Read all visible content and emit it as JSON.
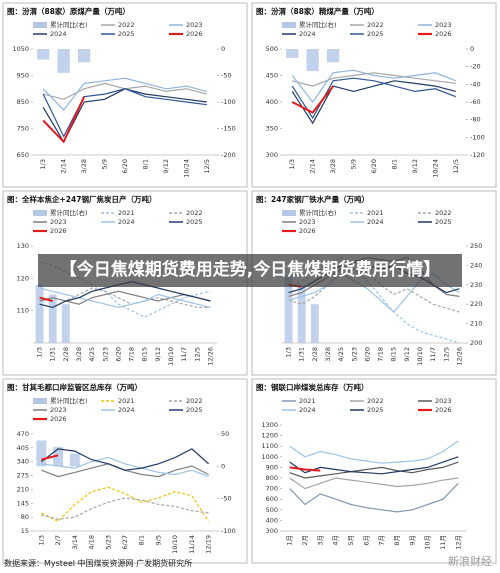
{
  "chart_data": [
    {
      "type": "line",
      "title": "图：汾渭（88家）原煤产量（万吨）",
      "categories": [
        "1/3",
        "2/14",
        "3/28",
        "5/9",
        "6/20",
        "8/1",
        "9/12",
        "10/24",
        "12/5"
      ],
      "ylim": [
        650,
        1050
      ],
      "yticks": [
        650,
        750,
        850,
        950,
        1050
      ],
      "y2lim": [
        -200,
        0
      ],
      "y2ticks": [
        0,
        -50,
        -100,
        -150,
        -200
      ],
      "series": [
        {
          "name": "累计同比(右)",
          "mark": "bar",
          "axis": "y2",
          "color": "#b4c7e7",
          "values": [
            -20,
            -45,
            -25,
            null,
            null,
            null,
            null,
            null,
            null
          ]
        },
        {
          "name": "2022",
          "color": "#a6a6a6",
          "values": [
            880,
            860,
            900,
            920,
            900,
            910,
            890,
            900,
            880
          ]
        },
        {
          "name": "2023",
          "color": "#8fb4dd",
          "values": [
            900,
            820,
            920,
            930,
            940,
            920,
            900,
            910,
            890
          ]
        },
        {
          "name": "2024",
          "color": "#1f3864",
          "values": [
            830,
            700,
            850,
            860,
            900,
            880,
            870,
            860,
            850
          ]
        },
        {
          "name": "2025",
          "color": "#2f5597",
          "values": [
            880,
            720,
            870,
            880,
            900,
            870,
            860,
            850,
            840
          ]
        },
        {
          "name": "2026",
          "color": "#e41a1c",
          "values": [
            780,
            700,
            870,
            null,
            null,
            null,
            null,
            null,
            null
          ]
        }
      ]
    },
    {
      "type": "line",
      "title": "图：汾渭（88家）精煤产量（万吨）",
      "categories": [
        "1/3",
        "2/14",
        "3/28",
        "5/9",
        "6/20",
        "8/1",
        "9/12",
        "10/24",
        "12/5"
      ],
      "ylim": [
        300,
        500
      ],
      "yticks": [
        300,
        350,
        400,
        450,
        500
      ],
      "y2lim": [
        -120,
        0
      ],
      "y2ticks": [
        0,
        -20,
        -40,
        -60,
        -80,
        -100,
        -120
      ],
      "series": [
        {
          "name": "累计同比(右)",
          "mark": "bar",
          "axis": "y2",
          "color": "#b4c7e7",
          "values": [
            -10,
            -25,
            -15,
            null,
            null,
            null,
            null,
            null,
            null
          ]
        },
        {
          "name": "2022",
          "color": "#a6a6a6",
          "values": [
            440,
            430,
            445,
            450,
            455,
            450,
            445,
            440,
            435
          ]
        },
        {
          "name": "2023",
          "color": "#8fb4dd",
          "values": [
            450,
            400,
            455,
            460,
            450,
            445,
            450,
            455,
            440
          ]
        },
        {
          "name": "2024",
          "color": "#1f3864",
          "values": [
            420,
            360,
            430,
            420,
            430,
            440,
            435,
            430,
            420
          ]
        },
        {
          "name": "2025",
          "color": "#2f5597",
          "values": [
            430,
            370,
            440,
            445,
            440,
            430,
            420,
            425,
            410
          ]
        },
        {
          "name": "2026",
          "color": "#e41a1c",
          "values": [
            400,
            380,
            430,
            null,
            null,
            null,
            null,
            null,
            null
          ]
        }
      ]
    },
    {
      "type": "line",
      "title": "图：全样本焦企+247钢厂焦炭日产（万吨）",
      "categories": [
        "1/3",
        "1/31",
        "2/28",
        "3/28",
        "4/25",
        "5/23",
        "6/20",
        "7/18",
        "8/15",
        "9/12",
        "10/10",
        "11/7",
        "12/5",
        "12/26"
      ],
      "ylim": [
        100,
        130
      ],
      "yticks": [
        110,
        120,
        130
      ],
      "y2lim": [
        0,
        50
      ],
      "series": [
        {
          "name": "累计同比(右)",
          "mark": "bar",
          "axis": "y2",
          "color": "#b4c7e7",
          "values": [
            30,
            25,
            20,
            null,
            null,
            null,
            null,
            null,
            null,
            null,
            null,
            null,
            null,
            null
          ]
        },
        {
          "name": "2021",
          "color": "#9dc3e6",
          "dash": true,
          "values": [
            125,
            124,
            122,
            120,
            118,
            116,
            112,
            110,
            108,
            110,
            112,
            114,
            115,
            116
          ]
        },
        {
          "name": "2022",
          "color": "#a6a6a6",
          "dash": true,
          "values": [
            112,
            111,
            113,
            115,
            117,
            116,
            114,
            112,
            113,
            114,
            113,
            112,
            111,
            111
          ]
        },
        {
          "name": "2023",
          "color": "#808080",
          "values": [
            113,
            114,
            113,
            112,
            114,
            115,
            116,
            115,
            114,
            113,
            114,
            115,
            114,
            113
          ]
        },
        {
          "name": "2024",
          "color": "#9dc3e6",
          "values": [
            117,
            116,
            115,
            114,
            113,
            112,
            111,
            112,
            113,
            115,
            114,
            113,
            112,
            111
          ]
        },
        {
          "name": "2025",
          "color": "#1f3864",
          "values": [
            112,
            111,
            113,
            114,
            116,
            117,
            118,
            119,
            118,
            117,
            116,
            115,
            114,
            113
          ]
        },
        {
          "name": "2026",
          "color": "#e41a1c",
          "values": [
            114,
            113,
            null,
            null,
            null,
            null,
            null,
            null,
            null,
            null,
            null,
            null,
            null,
            null
          ]
        }
      ]
    },
    {
      "type": "line",
      "title": "图：247家钢厂铁水产量（万吨）",
      "categories": [
        "1/3",
        "1/31",
        "2/28",
        "3/28",
        "4/25",
        "5/23",
        "6/20",
        "7/18",
        "8/15",
        "9/12",
        "10/10",
        "11/7",
        "12/5",
        "12/26"
      ],
      "ylim": [
        200,
        250
      ],
      "yticks": [
        200,
        210,
        220,
        230,
        240,
        250
      ],
      "y_side": "right",
      "y2lim": [
        0,
        50
      ],
      "series": [
        {
          "name": "累计同比(右)",
          "mark": "bar",
          "axis": "y2",
          "color": "#b4c7e7",
          "values": [
            35,
            30,
            20,
            null,
            null,
            null,
            null,
            null,
            null,
            null,
            null,
            null,
            null,
            null
          ]
        },
        {
          "name": "2021",
          "color": "#9dc3e6",
          "dash": true,
          "values": [
            228,
            232,
            236,
            240,
            244,
            238,
            232,
            224,
            216,
            210,
            206,
            204,
            202,
            200
          ]
        },
        {
          "name": "2022",
          "color": "#a6a6a6",
          "dash": true,
          "values": [
            222,
            220,
            224,
            230,
            236,
            238,
            236,
            230,
            225,
            228,
            224,
            220,
            218,
            216
          ]
        },
        {
          "name": "2023",
          "color": "#808080",
          "values": [
            224,
            226,
            230,
            234,
            238,
            242,
            244,
            243,
            242,
            244,
            238,
            230,
            225,
            224
          ]
        },
        {
          "name": "2024",
          "color": "#9dc3e6",
          "values": [
            222,
            224,
            226,
            230,
            236,
            232,
            228,
            222,
            216,
            224,
            232,
            236,
            230,
            226
          ]
        },
        {
          "name": "2025",
          "color": "#1f3864",
          "values": [
            226,
            228,
            232,
            236,
            240,
            242,
            240,
            238,
            240,
            236,
            234,
            230,
            226,
            228
          ]
        },
        {
          "name": "2026",
          "color": "#e41a1c",
          "values": [
            230,
            229,
            null,
            null,
            null,
            null,
            null,
            null,
            null,
            null,
            null,
            null,
            null,
            null
          ]
        }
      ]
    },
    {
      "type": "line",
      "title": "图：甘其毛都口岸监管区总库存（万吨）",
      "categories": [
        "1/3",
        "2/7",
        "3/14",
        "4/18",
        "5/23",
        "6/27",
        "8/1",
        "9/5",
        "10/10",
        "11/14",
        "12/19"
      ],
      "ylim": [
        15,
        470
      ],
      "yticks": [
        15,
        80,
        145,
        210,
        275,
        340,
        405,
        470
      ],
      "y2lim": [
        -100,
        50
      ],
      "y2ticks": [
        50,
        0,
        -50,
        -100
      ],
      "series": [
        {
          "name": "累计同比(右)",
          "mark": "bar",
          "axis": "y2",
          "color": "#b4c7e7",
          "values": [
            40,
            30,
            20,
            null,
            null,
            null,
            null,
            null,
            null,
            null,
            null
          ]
        },
        {
          "name": "2021",
          "color": "#f2c200",
          "dash": true,
          "values": [
            100,
            60,
            140,
            200,
            220,
            190,
            150,
            170,
            200,
            180,
            60
          ]
        },
        {
          "name": "2022",
          "color": "#a6a6a6",
          "dash": true,
          "values": [
            90,
            70,
            80,
            120,
            150,
            170,
            160,
            140,
            130,
            110,
            100
          ]
        },
        {
          "name": "2023",
          "color": "#808080",
          "values": [
            300,
            270,
            290,
            310,
            330,
            300,
            280,
            270,
            300,
            320,
            280
          ]
        },
        {
          "name": "2024",
          "color": "#9dc3e6",
          "values": [
            330,
            320,
            310,
            340,
            360,
            330,
            310,
            290,
            280,
            300,
            270
          ]
        },
        {
          "name": "2025",
          "color": "#1f3864",
          "values": [
            340,
            400,
            390,
            350,
            330,
            300,
            310,
            330,
            360,
            400,
            330
          ]
        },
        {
          "name": "2026",
          "color": "#e41a1c",
          "values": [
            350,
            370,
            null,
            null,
            null,
            null,
            null,
            null,
            null,
            null,
            null
          ]
        }
      ]
    },
    {
      "type": "line",
      "title": "图：钢联口岸煤炭总库存（万吨）",
      "categories": [
        "1月",
        "2月",
        "3月",
        "4月",
        "5月",
        "6月",
        "7月",
        "8月",
        "9月",
        "10月",
        "11月",
        "12月"
      ],
      "ylim": [
        300,
        1300
      ],
      "yticks": [
        300,
        400,
        500,
        600,
        700,
        800,
        900,
        1000,
        1100,
        1200,
        1300
      ],
      "series": [
        {
          "name": "2021",
          "color": "#8497b0",
          "values": [
            700,
            550,
            650,
            600,
            550,
            520,
            500,
            480,
            500,
            550,
            600,
            750
          ]
        },
        {
          "name": "2022",
          "color": "#a6a6a6",
          "values": [
            800,
            700,
            750,
            800,
            780,
            760,
            740,
            720,
            730,
            750,
            780,
            800
          ]
        },
        {
          "name": "2023",
          "color": "#595959",
          "values": [
            850,
            800,
            820,
            840,
            860,
            880,
            900,
            870,
            850,
            880,
            900,
            950
          ]
        },
        {
          "name": "2024",
          "color": "#9dc3e6",
          "values": [
            1100,
            1000,
            1050,
            1020,
            980,
            960,
            940,
            950,
            960,
            980,
            1050,
            1150
          ]
        },
        {
          "name": "2025",
          "color": "#1f3864",
          "values": [
            950,
            850,
            900,
            880,
            860,
            850,
            840,
            860,
            880,
            900,
            950,
            1000
          ]
        },
        {
          "name": "2026",
          "color": "#e41a1c",
          "values": [
            900,
            880,
            870,
            null,
            null,
            null,
            null,
            null,
            null,
            null,
            null,
            null
          ]
        }
      ]
    }
  ],
  "overlay": {
    "title": "【今日焦煤期货费用走势,今日焦煤期货费用行情】"
  },
  "footer": {
    "source": "数据来源：Mysteel   中国煤炭资源网   广发期货研究所",
    "watermark": "新浪财经"
  }
}
